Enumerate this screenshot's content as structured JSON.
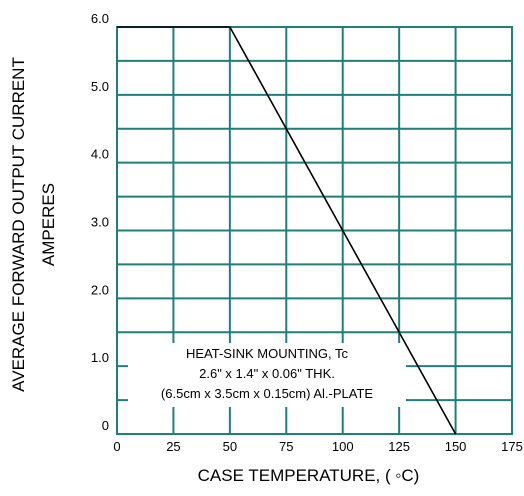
{
  "chart_data": {
    "type": "line",
    "title": "",
    "xlabel": "CASE TEMPERATURE, ( ◦C)",
    "ylabel_lines": [
      "AVERAGE FORWARD OUTPUT CURRENT",
      "AMPERES"
    ],
    "xlim": [
      0,
      175
    ],
    "ylim": [
      0,
      6.0
    ],
    "x_ticks": [
      0,
      25,
      50,
      75,
      100,
      125,
      150,
      175
    ],
    "x_tick_labels": [
      "0",
      "25",
      "50",
      "75",
      "100",
      "125",
      "150",
      "175"
    ],
    "y_ticks": [
      0,
      1.0,
      2.0,
      3.0,
      4.0,
      5.0,
      6.0
    ],
    "y_tick_labels": [
      "0",
      "1.0",
      "2.0",
      "3.0",
      "4.0",
      "5.0",
      "6.0"
    ],
    "grid": true,
    "grid_color": "#1f7f7a",
    "line_color": "#000000",
    "series": [
      {
        "x": [
          0,
          50,
          150
        ],
        "y": [
          6.0,
          6.0,
          0
        ]
      }
    ],
    "annotation": {
      "lines": [
        "HEAT-SINK MOUNTING, Tc",
        "2.6\" x 1.4\" x 0.06\" THK.",
        "(6.5cm x 3.5cm x 0.15cm) Al.-PLATE"
      ]
    }
  }
}
